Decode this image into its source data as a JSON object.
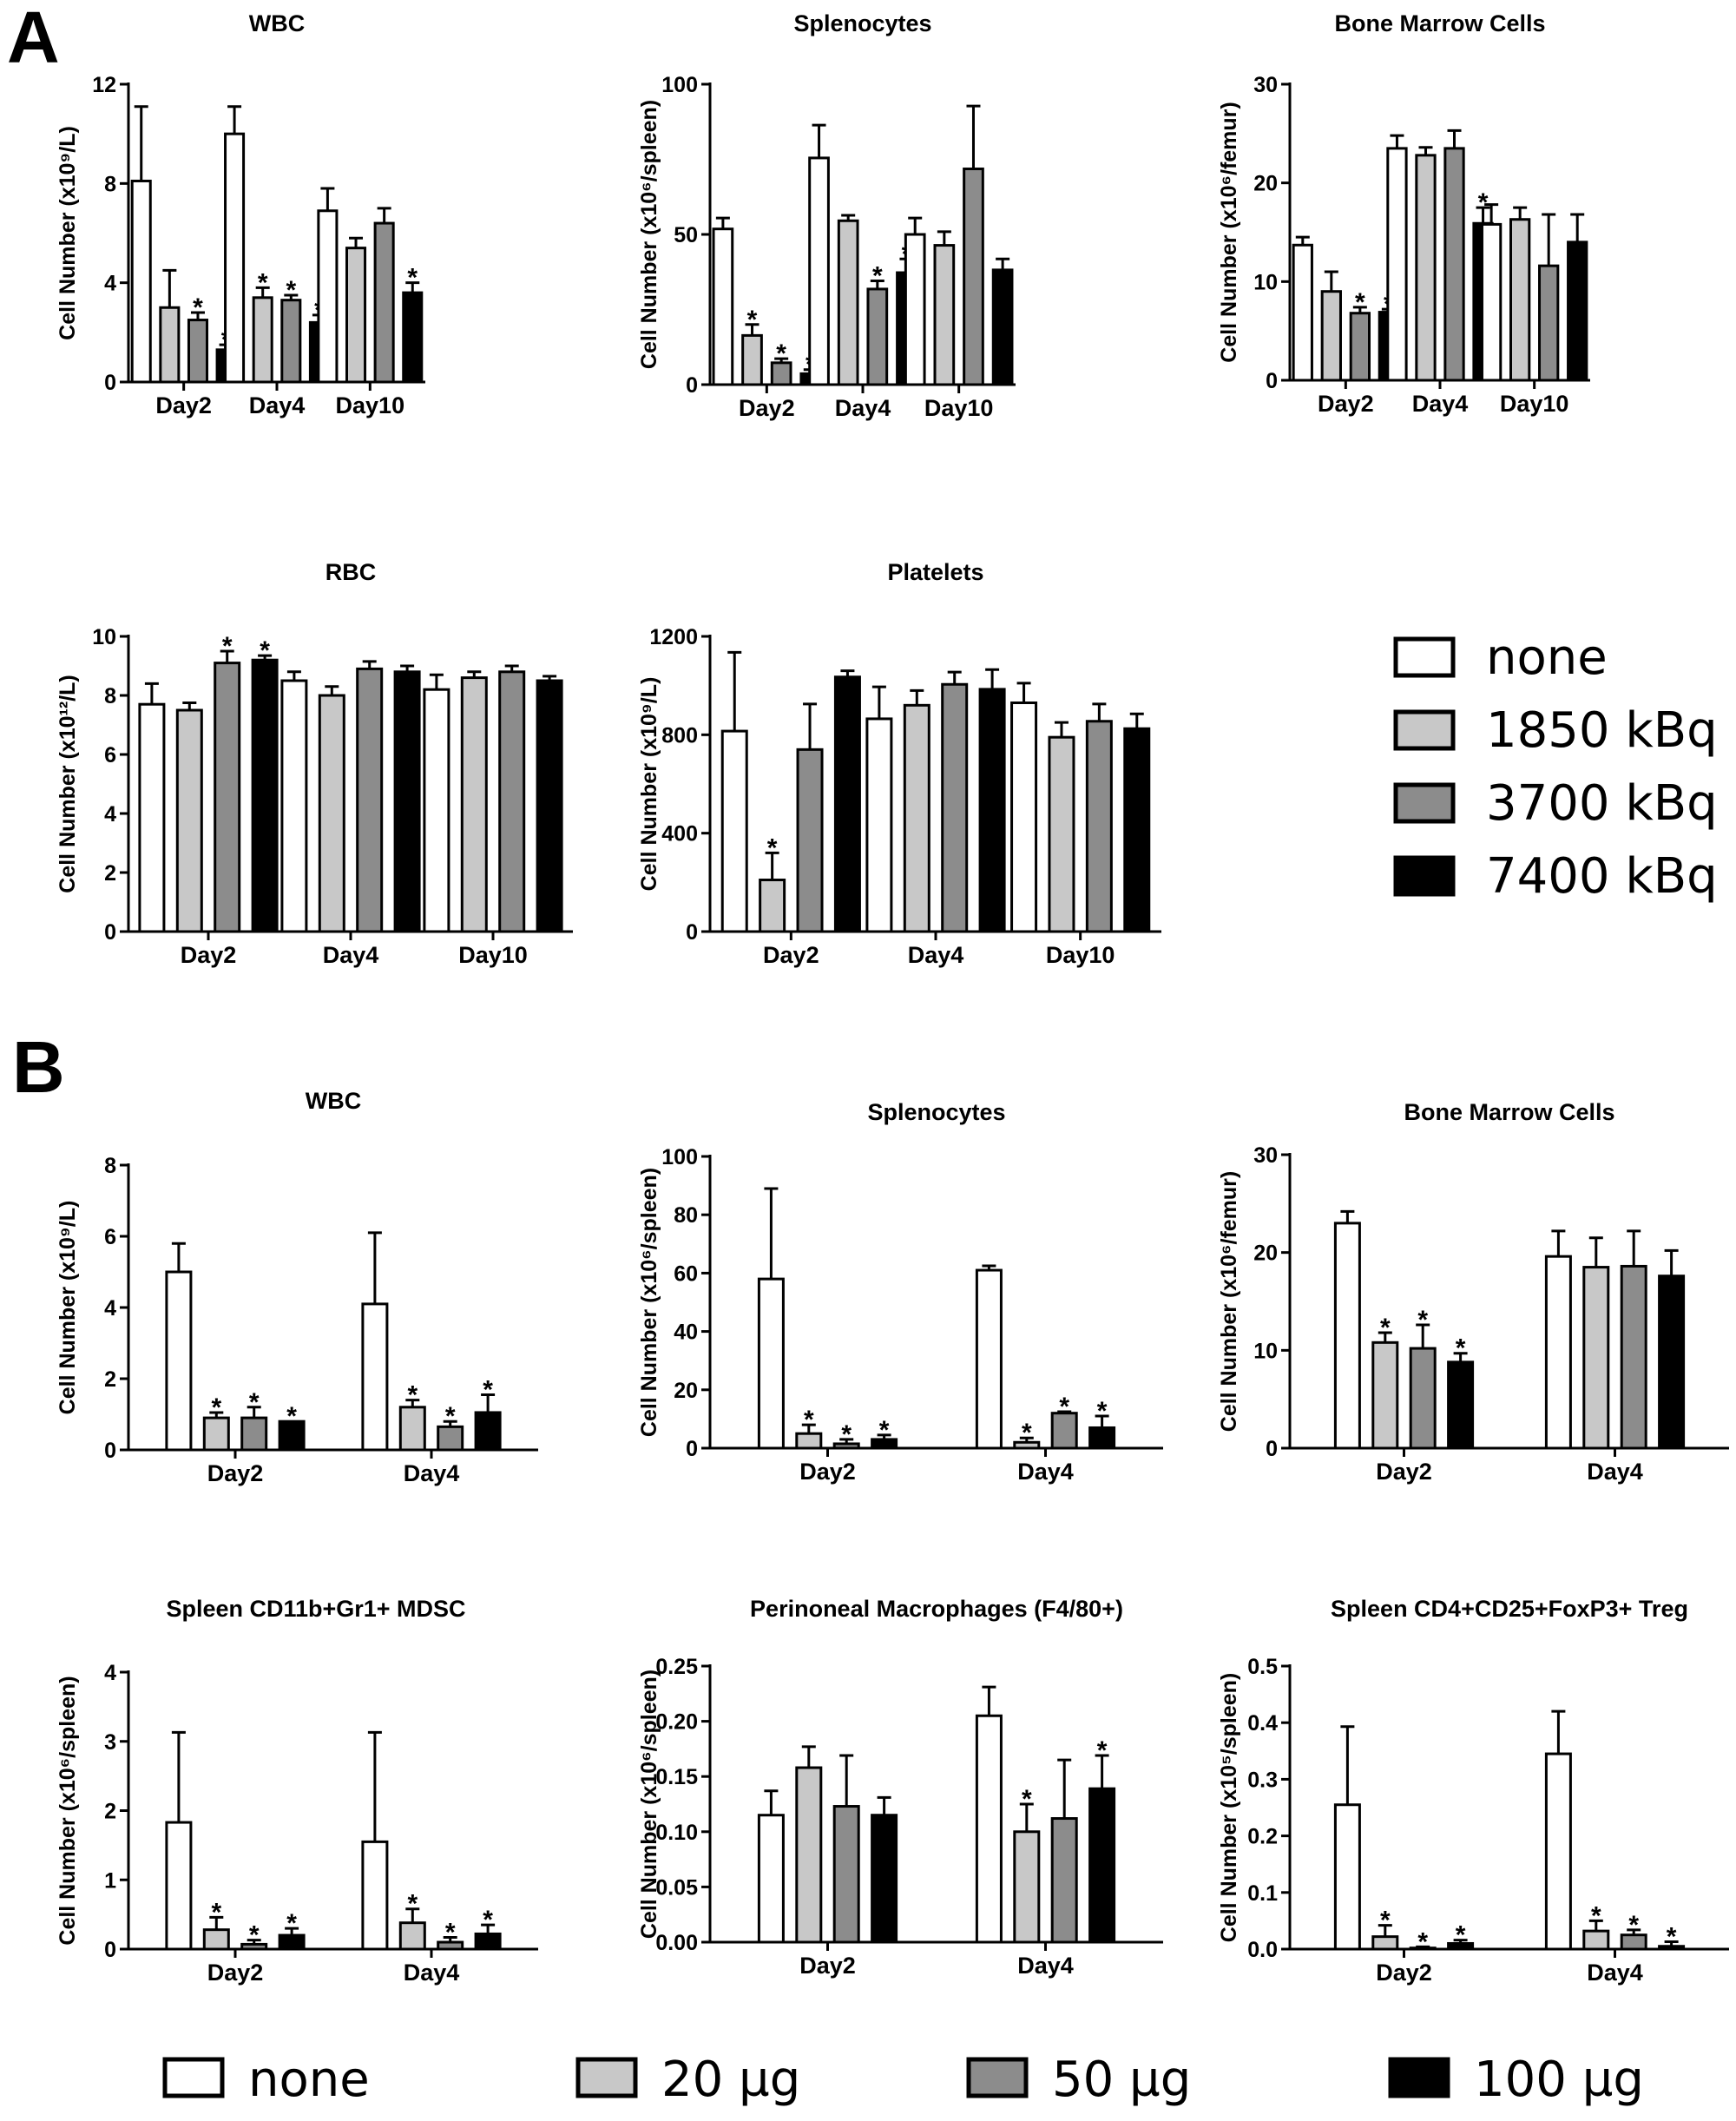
{
  "panels": [
    "A",
    "B"
  ],
  "colors": {
    "none": "#ffffff",
    "low": "#c8c8c8",
    "mid": "#8c8c8c",
    "high": "#000000"
  },
  "legend_A": [
    {
      "label": "none",
      "color": "#ffffff"
    },
    {
      "label": "1850 kBq",
      "color": "#c8c8c8"
    },
    {
      "label": "3700 kBq",
      "color": "#8c8c8c"
    },
    {
      "label": "7400 kBq",
      "color": "#000000"
    }
  ],
  "legend_B": [
    {
      "label": "none",
      "color": "#ffffff"
    },
    {
      "label": "20 µg",
      "color": "#c8c8c8"
    },
    {
      "label": "50 µg",
      "color": "#8c8c8c"
    },
    {
      "label": "100 µg",
      "color": "#000000"
    }
  ],
  "chart_data": [
    {
      "panel": "A",
      "type": "bar",
      "title": "WBC",
      "ylabel": "Cell Number (x10⁹/L)",
      "ylim": [
        0,
        12
      ],
      "yticks": [
        "0",
        "4",
        "8",
        "12"
      ],
      "categories": [
        "Day2",
        "Day4",
        "Day10"
      ],
      "series": [
        {
          "name": "none",
          "values": [
            8.1,
            10.0,
            6.9
          ],
          "errors": [
            3.0,
            1.1,
            0.9
          ],
          "sig": [
            false,
            false,
            false
          ]
        },
        {
          "name": "1850 kBq",
          "values": [
            3.0,
            3.4,
            5.4
          ],
          "errors": [
            1.5,
            0.4,
            0.4
          ],
          "sig": [
            false,
            true,
            false
          ]
        },
        {
          "name": "3700 kBq",
          "values": [
            2.5,
            3.3,
            6.4
          ],
          "errors": [
            0.3,
            0.2,
            0.6
          ],
          "sig": [
            true,
            true,
            false
          ]
        },
        {
          "name": "7400 kBq",
          "values": [
            1.3,
            2.4,
            3.6
          ],
          "errors": [
            0.2,
            0.3,
            0.4
          ],
          "sig": [
            true,
            true,
            true
          ]
        }
      ]
    },
    {
      "panel": "A",
      "type": "bar",
      "title": "Splenocytes",
      "ylabel": "Cell Number (x10⁶/spleen)",
      "ylim": [
        0,
        110
      ],
      "yticks": [
        "0",
        "50",
        "100"
      ],
      "categories": [
        "Day2",
        "Day4",
        "Day10"
      ],
      "series": [
        {
          "name": "none",
          "values": [
            57,
            83,
            55
          ],
          "errors": [
            4,
            12,
            6
          ],
          "sig": [
            false,
            false,
            false
          ]
        },
        {
          "name": "1850 kBq",
          "values": [
            18,
            60,
            51
          ],
          "errors": [
            4,
            2,
            5
          ],
          "sig": [
            true,
            false,
            false
          ]
        },
        {
          "name": "3700 kBq",
          "values": [
            8,
            35,
            79
          ],
          "errors": [
            1.5,
            3,
            23
          ],
          "sig": [
            true,
            true,
            false
          ]
        },
        {
          "name": "7400 kBq",
          "values": [
            4,
            41,
            42
          ],
          "errors": [
            1.5,
            5,
            4
          ],
          "sig": [
            true,
            true,
            false
          ]
        }
      ]
    },
    {
      "panel": "A",
      "type": "bar",
      "title": "Bone Marrow Cells",
      "ylabel": "Cell Number (x10⁶/femur)",
      "ylim": [
        0,
        30
      ],
      "yticks": [
        "0",
        "10",
        "20",
        "30"
      ],
      "categories": [
        "Day2",
        "Day4",
        "Day10"
      ],
      "series": [
        {
          "name": "none",
          "values": [
            13.7,
            23.5,
            15.8
          ],
          "errors": [
            0.8,
            1.3,
            2.0
          ],
          "sig": [
            false,
            false,
            false
          ]
        },
        {
          "name": "1850 kBq",
          "values": [
            9.0,
            22.8,
            16.3
          ],
          "errors": [
            2.0,
            0.8,
            1.2
          ],
          "sig": [
            false,
            false,
            false
          ]
        },
        {
          "name": "3700 kBq",
          "values": [
            6.8,
            23.5,
            11.6
          ],
          "errors": [
            0.6,
            1.8,
            5.2
          ],
          "sig": [
            true,
            false,
            false
          ]
        },
        {
          "name": "7400 kBq",
          "values": [
            6.9,
            15.9,
            14.0
          ],
          "errors": [
            0.3,
            1.6,
            2.8
          ],
          "sig": [
            true,
            true,
            false
          ]
        }
      ]
    },
    {
      "panel": "A",
      "type": "bar",
      "title": "RBC",
      "ylabel": "Cell Number (x10¹²/L)",
      "ylim": [
        0,
        10
      ],
      "yticks": [
        "0",
        "2",
        "4",
        "6",
        "8",
        "10"
      ],
      "categories": [
        "Day2",
        "Day4",
        "Day10"
      ],
      "series": [
        {
          "name": "none",
          "values": [
            7.7,
            8.5,
            8.2
          ],
          "errors": [
            0.7,
            0.3,
            0.5
          ],
          "sig": [
            false,
            false,
            false
          ]
        },
        {
          "name": "1850 kBq",
          "values": [
            7.5,
            8.0,
            8.6
          ],
          "errors": [
            0.25,
            0.3,
            0.2
          ],
          "sig": [
            false,
            false,
            false
          ]
        },
        {
          "name": "3700 kBq",
          "values": [
            9.1,
            8.9,
            8.8
          ],
          "errors": [
            0.4,
            0.25,
            0.2
          ],
          "sig": [
            true,
            false,
            false
          ]
        },
        {
          "name": "7400 kBq",
          "values": [
            9.2,
            8.8,
            8.5
          ],
          "errors": [
            0.15,
            0.2,
            0.15
          ],
          "sig": [
            true,
            false,
            false
          ]
        }
      ]
    },
    {
      "panel": "A",
      "type": "bar",
      "title": "Platelets",
      "ylabel": "Cell Number (x10⁹/L)",
      "ylim": [
        0,
        1200
      ],
      "yticks": [
        "0",
        "400",
        "800",
        "1200"
      ],
      "categories": [
        "Day2",
        "Day4",
        "Day10"
      ],
      "series": [
        {
          "name": "none",
          "values": [
            815,
            865,
            930
          ],
          "errors": [
            320,
            130,
            80
          ],
          "sig": [
            false,
            false,
            false
          ]
        },
        {
          "name": "1850 kBq",
          "values": [
            210,
            920,
            790
          ],
          "errors": [
            110,
            60,
            60
          ],
          "sig": [
            true,
            false,
            false
          ]
        },
        {
          "name": "3700 kBq",
          "values": [
            740,
            1005,
            855
          ],
          "errors": [
            185,
            50,
            70
          ],
          "sig": [
            false,
            false,
            false
          ]
        },
        {
          "name": "7400 kBq",
          "values": [
            1035,
            985,
            825
          ],
          "errors": [
            25,
            80,
            60
          ],
          "sig": [
            false,
            false,
            false
          ]
        }
      ]
    },
    {
      "panel": "B",
      "type": "bar",
      "title": "WBC",
      "ylabel": "Cell Number (x10⁹/L)",
      "ylim": [
        0,
        8
      ],
      "yticks": [
        "0",
        "2",
        "4",
        "6",
        "8"
      ],
      "categories": [
        "Day2",
        "Day4"
      ],
      "series": [
        {
          "name": "none",
          "values": [
            5.0,
            4.1
          ],
          "errors": [
            0.8,
            2.0
          ],
          "sig": [
            false,
            false
          ]
        },
        {
          "name": "20 µg",
          "values": [
            0.9,
            1.2
          ],
          "errors": [
            0.15,
            0.2
          ],
          "sig": [
            true,
            true
          ]
        },
        {
          "name": "50 µg",
          "values": [
            0.9,
            0.65
          ],
          "errors": [
            0.3,
            0.15
          ],
          "sig": [
            true,
            true
          ]
        },
        {
          "name": "100 µg",
          "values": [
            0.8,
            1.05
          ],
          "errors": [
            0.0,
            0.5
          ],
          "sig": [
            true,
            true
          ]
        }
      ]
    },
    {
      "panel": "B",
      "type": "bar",
      "title": "Splenocytes",
      "ylabel": "Cell Number (x10⁶/spleen)",
      "ylim": [
        0,
        100
      ],
      "yticks": [
        "0",
        "20",
        "40",
        "60",
        "80",
        "100"
      ],
      "categories": [
        "Day2",
        "Day4"
      ],
      "series": [
        {
          "name": "none",
          "values": [
            58,
            61
          ],
          "errors": [
            31,
            1.5
          ],
          "sig": [
            false,
            false
          ]
        },
        {
          "name": "20 µg",
          "values": [
            5,
            2
          ],
          "errors": [
            3,
            1.5
          ],
          "sig": [
            true,
            true
          ]
        },
        {
          "name": "50 µg",
          "values": [
            1.5,
            12
          ],
          "errors": [
            1.5,
            0.5
          ],
          "sig": [
            true,
            true
          ]
        },
        {
          "name": "100 µg",
          "values": [
            3,
            7
          ],
          "errors": [
            1.5,
            4
          ],
          "sig": [
            true,
            true
          ]
        }
      ]
    },
    {
      "panel": "B",
      "type": "bar",
      "title": "Bone Marrow Cells",
      "ylabel": "Cell Number (x10⁶/femur)",
      "ylim": [
        0,
        30
      ],
      "yticks": [
        "0",
        "10",
        "20",
        "30"
      ],
      "categories": [
        "Day2",
        "Day4"
      ],
      "series": [
        {
          "name": "none",
          "values": [
            23.0,
            19.6
          ],
          "errors": [
            1.2,
            2.6
          ],
          "sig": [
            false,
            false
          ]
        },
        {
          "name": "20 µg",
          "values": [
            10.8,
            18.5
          ],
          "errors": [
            1.0,
            3.0
          ],
          "sig": [
            true,
            false
          ]
        },
        {
          "name": "50 µg",
          "values": [
            10.2,
            18.6
          ],
          "errors": [
            2.4,
            3.6
          ],
          "sig": [
            true,
            false
          ]
        },
        {
          "name": "100 µg",
          "values": [
            8.8,
            17.6
          ],
          "errors": [
            0.9,
            2.6
          ],
          "sig": [
            true,
            false
          ]
        }
      ]
    },
    {
      "panel": "B",
      "type": "bar",
      "title": "Spleen CD11b+Gr1+ MDSC",
      "ylabel": "Cell Number (x10⁶/spleen)",
      "ylim": [
        0,
        4
      ],
      "yticks": [
        "0",
        "1",
        "2",
        "3",
        "4"
      ],
      "categories": [
        "Day2",
        "Day4"
      ],
      "series": [
        {
          "name": "none",
          "values": [
            1.83,
            1.55
          ],
          "errors": [
            1.3,
            1.58
          ],
          "sig": [
            false,
            false
          ]
        },
        {
          "name": "20 µg",
          "values": [
            0.28,
            0.38
          ],
          "errors": [
            0.18,
            0.2
          ],
          "sig": [
            true,
            true
          ]
        },
        {
          "name": "50 µg",
          "values": [
            0.07,
            0.1
          ],
          "errors": [
            0.06,
            0.07
          ],
          "sig": [
            true,
            true
          ]
        },
        {
          "name": "100 µg",
          "values": [
            0.2,
            0.22
          ],
          "errors": [
            0.1,
            0.13
          ],
          "sig": [
            true,
            true
          ]
        }
      ]
    },
    {
      "panel": "B",
      "type": "bar",
      "title": "Perinoneal Macrophages (F4/80+)",
      "ylabel": "Cell Number (x10⁶/spleen)",
      "ylim": [
        0,
        0.25
      ],
      "yticks": [
        "0.00",
        "0.05",
        "0.10",
        "0.15",
        "0.20",
        "0.25"
      ],
      "categories": [
        "Day2",
        "Day4"
      ],
      "series": [
        {
          "name": "none",
          "values": [
            0.115,
            0.205
          ],
          "errors": [
            0.022,
            0.026
          ],
          "sig": [
            false,
            false
          ]
        },
        {
          "name": "20 µg",
          "values": [
            0.158,
            0.1
          ],
          "errors": [
            0.019,
            0.025
          ],
          "sig": [
            false,
            true
          ]
        },
        {
          "name": "50 µg",
          "values": [
            0.123,
            0.112
          ],
          "errors": [
            0.046,
            0.053
          ],
          "sig": [
            false,
            false
          ]
        },
        {
          "name": "100 µg",
          "values": [
            0.115,
            0.139
          ],
          "errors": [
            0.016,
            0.03
          ],
          "sig": [
            false,
            true
          ]
        }
      ]
    },
    {
      "panel": "B",
      "type": "bar",
      "title": "Spleen CD4+CD25+FoxP3+ Treg",
      "ylabel": "Cell Number (x10⁵/spleen)",
      "ylim": [
        0,
        0.5
      ],
      "yticks": [
        "0.0",
        "0.1",
        "0.2",
        "0.3",
        "0.4",
        "0.5"
      ],
      "categories": [
        "Day2",
        "Day4"
      ],
      "series": [
        {
          "name": "none",
          "values": [
            0.255,
            0.345
          ],
          "errors": [
            0.138,
            0.075
          ],
          "sig": [
            false,
            false
          ]
        },
        {
          "name": "20 µg",
          "values": [
            0.022,
            0.032
          ],
          "errors": [
            0.02,
            0.018
          ],
          "sig": [
            true,
            true
          ]
        },
        {
          "name": "50 µg",
          "values": [
            0.002,
            0.025
          ],
          "errors": [
            0.002,
            0.009
          ],
          "sig": [
            true,
            true
          ]
        },
        {
          "name": "100 µg",
          "values": [
            0.01,
            0.005
          ],
          "errors": [
            0.006,
            0.008
          ],
          "sig": [
            true,
            true
          ]
        }
      ]
    }
  ]
}
